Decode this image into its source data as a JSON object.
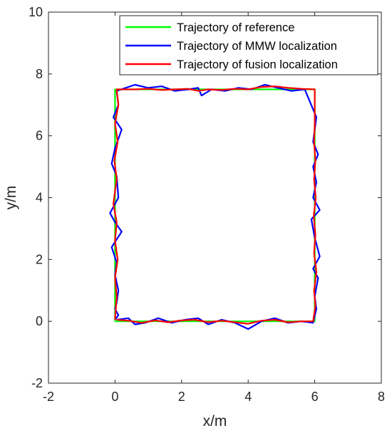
{
  "chart_data": {
    "type": "line",
    "xlabel": "x/m",
    "ylabel": "y/m",
    "xlim": [
      -2,
      8
    ],
    "ylim": [
      -2,
      10
    ],
    "xticks": [
      -2,
      0,
      2,
      4,
      6,
      8
    ],
    "yticks": [
      -2,
      0,
      2,
      4,
      6,
      8,
      10
    ],
    "grid": false,
    "legend_position": "top-right",
    "series": [
      {
        "name": "Trajectory of reference",
        "color": "#00ff00",
        "x": [
          0,
          6,
          6,
          0,
          0
        ],
        "y": [
          0,
          0,
          7.5,
          7.5,
          0
        ]
      },
      {
        "name": "Trajectory of MMW localization",
        "color": "#0000ff",
        "x": [
          0.05,
          0.4,
          0.6,
          0.9,
          1.3,
          1.7,
          2.1,
          2.5,
          2.8,
          3.2,
          3.6,
          4.0,
          4.4,
          4.8,
          5.2,
          5.6,
          5.95,
          6.05,
          6.0,
          6.1,
          5.95,
          6.15,
          6.0,
          5.9,
          6.15,
          5.95,
          6.05,
          5.95,
          6.1,
          5.95,
          6.0,
          6.05,
          5.7,
          5.3,
          4.9,
          4.5,
          4.1,
          3.7,
          3.3,
          2.9,
          2.6,
          2.5,
          2.2,
          1.8,
          1.4,
          1.0,
          0.6,
          0.05,
          0.1,
          -0.05,
          0.2,
          0.0,
          -0.1,
          0.05,
          0.1,
          -0.15,
          0.0,
          0.2,
          -0.1,
          0.05,
          0.0,
          0.1,
          0.05,
          0.0,
          0.1,
          0.0
        ],
        "y": [
          0.05,
          0.1,
          -0.1,
          -0.05,
          0.1,
          -0.05,
          0.05,
          0.1,
          -0.1,
          0.05,
          -0.05,
          -0.25,
          0.0,
          0.1,
          -0.05,
          0.0,
          -0.05,
          0.4,
          0.8,
          1.4,
          1.7,
          2.1,
          2.7,
          3.3,
          3.6,
          4.0,
          4.5,
          5.0,
          5.4,
          5.8,
          6.2,
          6.6,
          7.5,
          7.45,
          7.55,
          7.65,
          7.5,
          7.55,
          7.45,
          7.5,
          7.3,
          7.55,
          7.5,
          7.45,
          7.6,
          7.55,
          7.65,
          7.45,
          7.0,
          6.6,
          6.2,
          5.6,
          5.1,
          4.7,
          4.0,
          3.5,
          3.2,
          2.9,
          2.4,
          1.9,
          1.5,
          1.0,
          0.6,
          0.4,
          0.2,
          0.05
        ]
      },
      {
        "name": "Trajectory of fusion localization",
        "color": "#ff0000",
        "x": [
          0.05,
          0.4,
          0.8,
          1.2,
          1.6,
          2.0,
          2.4,
          2.8,
          3.2,
          3.6,
          4.0,
          4.4,
          4.8,
          5.2,
          5.6,
          5.95,
          6.02,
          5.98,
          6.05,
          5.98,
          6.02,
          5.97,
          6.03,
          5.98,
          6.02,
          5.98,
          6.0,
          6.0,
          5.6,
          5.2,
          4.8,
          4.4,
          4.0,
          3.6,
          3.2,
          2.8,
          2.5,
          2.2,
          1.8,
          1.4,
          1.0,
          0.6,
          0.05,
          0.1,
          0.0,
          0.08,
          -0.02,
          0.05,
          -0.05,
          0.05,
          0.0,
          0.08,
          0.0,
          0.05,
          0.0
        ],
        "y": [
          0.05,
          0.02,
          -0.05,
          0.03,
          -0.03,
          0.03,
          0.05,
          -0.03,
          0.02,
          -0.03,
          -0.08,
          0.02,
          0.05,
          -0.03,
          0.0,
          0.0,
          0.5,
          1.0,
          1.6,
          2.2,
          2.8,
          3.4,
          4.0,
          4.6,
          5.2,
          5.8,
          6.4,
          7.5,
          7.52,
          7.55,
          7.6,
          7.58,
          7.5,
          7.52,
          7.48,
          7.5,
          7.45,
          7.52,
          7.5,
          7.48,
          7.52,
          7.5,
          7.5,
          7.0,
          6.4,
          5.8,
          5.2,
          4.6,
          3.8,
          3.2,
          2.6,
          2.0,
          1.4,
          0.8,
          0.05
        ]
      }
    ]
  }
}
